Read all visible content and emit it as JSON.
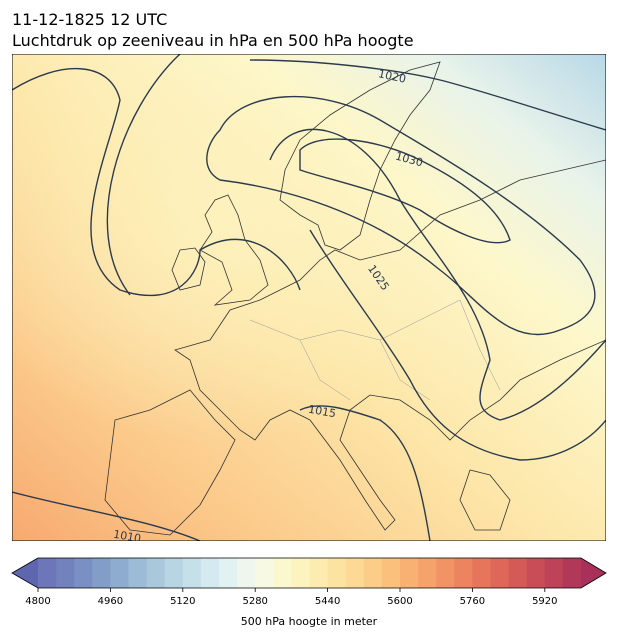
{
  "header": {
    "title": "11-12-1825 12 UTC",
    "subtitle": "Luchtdruk op zeeniveau in hPa en 500 hPa hoogte"
  },
  "map": {
    "contour_labels": [
      1020,
      1030,
      1025,
      1015,
      1010
    ]
  },
  "colorbar": {
    "label": "500 hPa hoogte in meter",
    "lim": [
      4800,
      6000
    ],
    "ticks": [
      4800,
      4960,
      5120,
      5280,
      5440,
      5600,
      5760,
      5920
    ],
    "under_color": "#5d66ae",
    "over_color": "#a8305a",
    "colors": [
      "#6d76b8",
      "#7282bd",
      "#7a8fc3",
      "#839dc9",
      "#8eaccf",
      "#9bbbd6",
      "#a9c8dc",
      "#b7d5e3",
      "#c6e0ea",
      "#d5eaf0",
      "#e2f1f1",
      "#eef6ee",
      "#f7f9e2",
      "#fbf8d0",
      "#fdf3bf",
      "#fdecb0",
      "#fde3a2",
      "#fdd995",
      "#fccd88",
      "#fbc07c",
      "#f9b173",
      "#f6a26b",
      "#f29365",
      "#ed8460",
      "#e6755c",
      "#de6759",
      "#d45a58",
      "#c94d57",
      "#be4258",
      "#b2385a"
    ]
  }
}
